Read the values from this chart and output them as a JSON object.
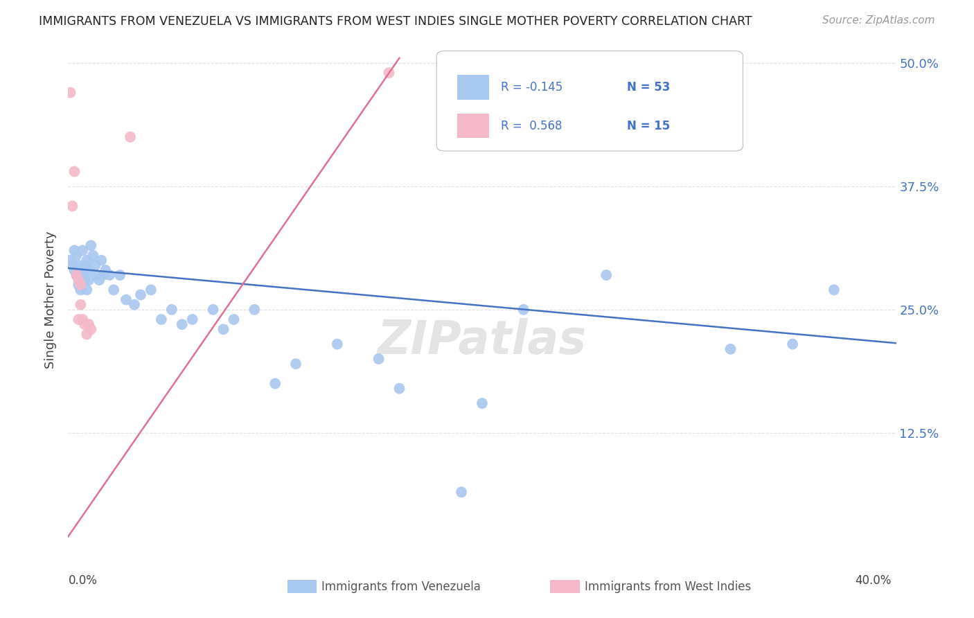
{
  "title": "IMMIGRANTS FROM VENEZUELA VS IMMIGRANTS FROM WEST INDIES SINGLE MOTHER POVERTY CORRELATION CHART",
  "source": "Source: ZipAtlas.com",
  "ylabel": "Single Mother Poverty",
  "xlim": [
    0,
    0.4
  ],
  "ylim": [
    0,
    0.52
  ],
  "legend_blue_R": "-0.145",
  "legend_blue_N": "53",
  "legend_pink_R": "0.568",
  "legend_pink_N": "15",
  "blue_color": "#A8C8F0",
  "pink_color": "#F5B8C8",
  "blue_line_color": "#4472C4",
  "pink_line_color": "#E07090",
  "watermark": "ZIPatlas",
  "blue_x": [
    0.001,
    0.002,
    0.003,
    0.003,
    0.004,
    0.004,
    0.005,
    0.005,
    0.006,
    0.006,
    0.007,
    0.007,
    0.008,
    0.008,
    0.009,
    0.009,
    0.01,
    0.01,
    0.011,
    0.012,
    0.013,
    0.014,
    0.015,
    0.016,
    0.017,
    0.018,
    0.02,
    0.022,
    0.025,
    0.028,
    0.032,
    0.035,
    0.04,
    0.045,
    0.05,
    0.055,
    0.06,
    0.07,
    0.075,
    0.08,
    0.09,
    0.1,
    0.11,
    0.13,
    0.15,
    0.16,
    0.19,
    0.2,
    0.22,
    0.26,
    0.32,
    0.35,
    0.37
  ],
  "blue_y": [
    0.3,
    0.295,
    0.31,
    0.29,
    0.305,
    0.285,
    0.295,
    0.275,
    0.29,
    0.27,
    0.31,
    0.285,
    0.295,
    0.28,
    0.3,
    0.27,
    0.29,
    0.28,
    0.315,
    0.305,
    0.295,
    0.285,
    0.28,
    0.3,
    0.285,
    0.29,
    0.285,
    0.27,
    0.285,
    0.26,
    0.255,
    0.265,
    0.27,
    0.24,
    0.25,
    0.235,
    0.24,
    0.25,
    0.23,
    0.24,
    0.25,
    0.175,
    0.195,
    0.215,
    0.2,
    0.17,
    0.065,
    0.155,
    0.25,
    0.285,
    0.21,
    0.215,
    0.27
  ],
  "pink_x": [
    0.001,
    0.002,
    0.003,
    0.004,
    0.005,
    0.005,
    0.006,
    0.006,
    0.007,
    0.008,
    0.009,
    0.01,
    0.011,
    0.03,
    0.155
  ],
  "pink_y": [
    0.47,
    0.355,
    0.39,
    0.285,
    0.28,
    0.24,
    0.275,
    0.255,
    0.24,
    0.235,
    0.225,
    0.235,
    0.23,
    0.425,
    0.49
  ],
  "grid_color": "#E0E0E0",
  "background_color": "#FFFFFF",
  "ytick_values": [
    0.0,
    0.125,
    0.25,
    0.375,
    0.5
  ],
  "xtick_values": [
    0.0,
    0.1,
    0.2,
    0.3,
    0.4
  ]
}
